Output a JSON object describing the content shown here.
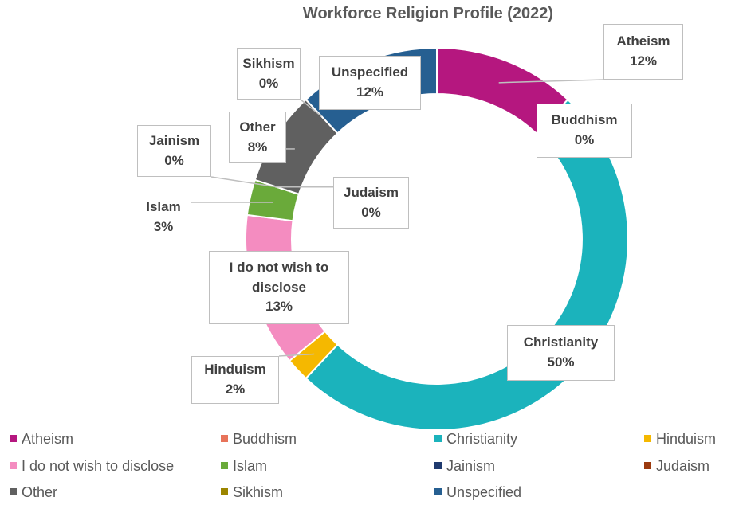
{
  "chart_data": {
    "type": "doughnut",
    "title": "Workforce Religion Profile (2022)",
    "categories": [
      "Atheism",
      "Buddhism",
      "Christianity",
      "Hinduism",
      "I do not wish to disclose",
      "Islam",
      "Jainism",
      "Judaism",
      "Other",
      "Sikhism",
      "Unspecified"
    ],
    "values": [
      12,
      0,
      50,
      2,
      13,
      3,
      0,
      0,
      8,
      0,
      12
    ],
    "value_labels": [
      "12%",
      "0%",
      "50%",
      "2%",
      "13%",
      "3%",
      "0%",
      "0%",
      "8%",
      "0%",
      "12%"
    ],
    "colors": [
      "#b5177f",
      "#e8735a",
      "#1bb3bc",
      "#f5b800",
      "#f48cc0",
      "#6aaa3a",
      "#1f3a6e",
      "#9b3a0e",
      "#606060",
      "#9b8500",
      "#265f91"
    ],
    "legend": "bottom"
  }
}
